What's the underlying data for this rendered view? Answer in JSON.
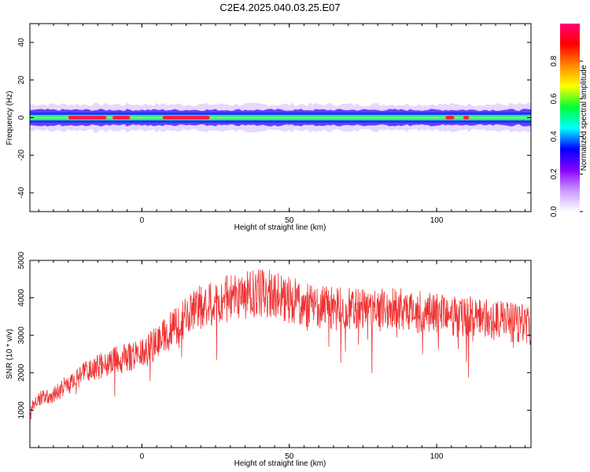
{
  "figure": {
    "title": "C2E4.2025.040.03.25.E07"
  },
  "chart_data": [
    {
      "type": "heatmap",
      "xlabel": "Height of straight line (km)",
      "ylabel": "Frequency (Hz)",
      "xlim": [
        -38,
        132
      ],
      "ylim": [
        -50,
        50
      ],
      "xticks": [
        0,
        50,
        100
      ],
      "yticks": [
        -40,
        -20,
        0,
        20,
        40
      ],
      "band_center_hz": 0,
      "core_halfwidth_hz": 1.5,
      "halo_halfwidth_hz": 5,
      "hot_segments_km": [
        [
          -25,
          -12
        ],
        [
          -10,
          -4
        ],
        [
          7,
          23
        ],
        [
          103,
          106
        ],
        [
          109,
          111
        ]
      ],
      "colorbar": {
        "label": "Normalized spectral amplitude",
        "range": [
          0,
          1
        ],
        "ticks": [
          "0.0",
          "0.2",
          "0.4",
          "0.6",
          "0.8"
        ],
        "colors": [
          "#ffffff",
          "#cc99ff",
          "#8800ff",
          "#0000ff",
          "#00ffff",
          "#00ff33",
          "#ffff00",
          "#ff8800",
          "#ff0000",
          "#ff0077"
        ]
      }
    },
    {
      "type": "line",
      "xlabel": "Height of straight line (km)",
      "ylabel": "SNR (10 * v/v)",
      "xlim": [
        -38,
        132
      ],
      "ylim": [
        0,
        5000
      ],
      "xticks": [
        0,
        50,
        100
      ],
      "yticks": [
        1000,
        2000,
        3000,
        4000,
        5000
      ],
      "line_color": "#ee3333",
      "series": [
        {
          "x": [
            -38,
            -35,
            -30,
            -25,
            -20,
            -15,
            -10,
            -5,
            0,
            5,
            10,
            15,
            20,
            25,
            30,
            35,
            40,
            45,
            50,
            55,
            60,
            65,
            70,
            75,
            80,
            85,
            90,
            95,
            100,
            105,
            110,
            115,
            120,
            125,
            130,
            132
          ],
          "values": [
            1000,
            1300,
            1400,
            1700,
            1950,
            2150,
            2300,
            2400,
            2550,
            2800,
            3150,
            3500,
            3750,
            3900,
            4000,
            4050,
            4150,
            4100,
            3950,
            3850,
            3750,
            3700,
            3700,
            3650,
            3650,
            3700,
            3650,
            3600,
            3550,
            3500,
            3500,
            3450,
            3400,
            3350,
            3300,
            3250
          ]
        }
      ]
    }
  ]
}
